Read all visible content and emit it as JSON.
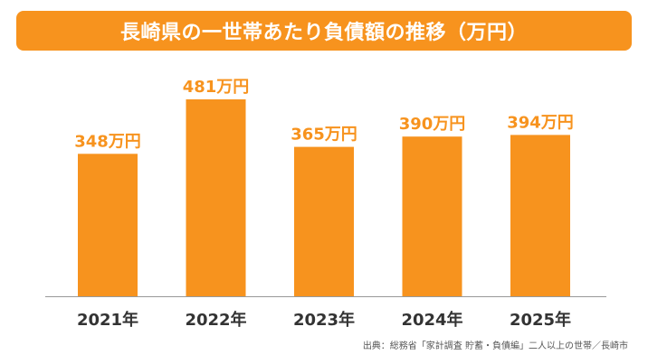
{
  "title": "長崎県の一世帯あたり負債額の推移（万円）",
  "source": "出典：総務省「家計調査 貯蓄・負債編」二人以上の世帯／長崎市",
  "colors": {
    "bar": "#f7931e",
    "banner": "#f7931e",
    "label": "#f7931e",
    "axis": "#999999",
    "tick": "#333333"
  },
  "chart_data": {
    "type": "bar",
    "title": "長崎県の一世帯あたり負債額の推移（万円）",
    "categories": [
      "2021年",
      "2022年",
      "2023年",
      "2024年",
      "2025年"
    ],
    "values": [
      348,
      481,
      365,
      390,
      394
    ],
    "data_labels": [
      "348万円",
      "481万円",
      "365万円",
      "390万円",
      "394万円"
    ],
    "unit": "万円",
    "xlabel": "",
    "ylabel": "",
    "ylim": [
      0,
      481
    ],
    "grid": false,
    "legend": "none"
  }
}
